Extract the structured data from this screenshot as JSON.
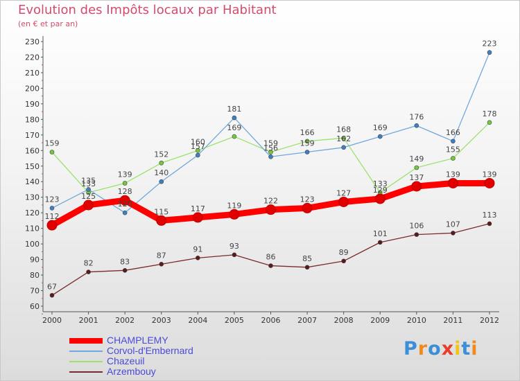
{
  "chart_data": {
    "type": "line",
    "title": "Evolution des Impôts locaux par Habitant",
    "subtitle": "(en € et par an)",
    "x": [
      "2000",
      "2001",
      "2002",
      "2003",
      "2004",
      "2005",
      "2006",
      "2007",
      "2008",
      "2009",
      "2010",
      "2011",
      "2012"
    ],
    "ylim": [
      60,
      230
    ],
    "yticks": [
      60,
      70,
      80,
      90,
      100,
      110,
      120,
      130,
      140,
      150,
      160,
      170,
      180,
      190,
      200,
      210,
      220,
      230
    ],
    "grid": false,
    "legend_position": "bottom-left",
    "series": [
      {
        "name": "CHAMPLEMY",
        "color": "#ff0000",
        "values": [
          112,
          125,
          128,
          115,
          117,
          119,
          122,
          123,
          127,
          129,
          137,
          139,
          139
        ]
      },
      {
        "name": "Corvol-d'Embernard",
        "color": "#6fa8dc",
        "values": [
          123,
          135,
          120,
          140,
          157,
          181,
          156,
          159,
          162,
          169,
          176,
          166,
          223
        ]
      },
      {
        "name": "Chazeuil",
        "color": "#99e26b",
        "values": [
          159,
          133,
          139,
          152,
          160,
          169,
          159,
          166,
          168,
          133,
          149,
          155,
          178
        ]
      },
      {
        "name": "Arzembouy",
        "color": "#7a2a2a",
        "values": [
          67,
          82,
          83,
          87,
          91,
          93,
          86,
          85,
          89,
          101,
          106,
          107,
          113
        ]
      }
    ]
  },
  "logo": {
    "text": "Proxiti",
    "letters": [
      "P",
      "r",
      "o",
      "x",
      "i",
      "t",
      "i"
    ]
  }
}
